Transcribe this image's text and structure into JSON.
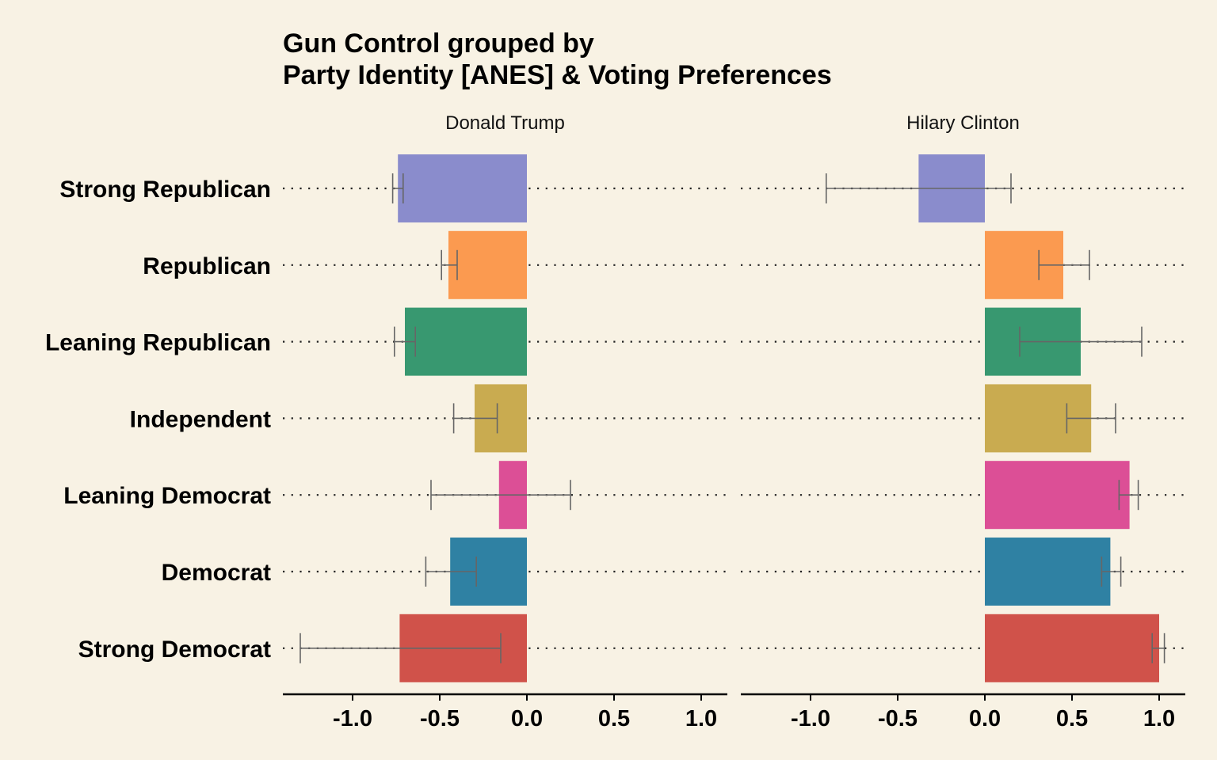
{
  "chart_data": {
    "type": "bar",
    "orientation": "horizontal",
    "title": [
      "Gun Control grouped by",
      "Party Identity [ANES] & Voting Preferences"
    ],
    "categories": [
      "Strong Republican",
      "Republican",
      "Leaning Republican",
      "Independent",
      "Leaning Democrat",
      "Democrat",
      "Strong Democrat"
    ],
    "colors": [
      "#8a8ccc",
      "#fb9a50",
      "#389870",
      "#c9ab50",
      "#dc4f96",
      "#2f81a3",
      "#d0524a"
    ],
    "xlim": [
      -1.4,
      1.15
    ],
    "xticks": [
      -1.0,
      -0.5,
      0.0,
      0.5,
      1.0
    ],
    "xtick_labels": [
      "-1.0",
      "-0.5",
      "0.0",
      "0.5",
      "1.0"
    ],
    "grid": "dotted horizontal lines at each category",
    "panels": [
      {
        "name": "Donald Trump",
        "values": [
          -0.74,
          -0.45,
          -0.7,
          -0.3,
          -0.16,
          -0.44,
          -0.73
        ],
        "errors": [
          [
            -0.77,
            -0.71
          ],
          [
            -0.49,
            -0.4
          ],
          [
            -0.76,
            -0.64
          ],
          [
            -0.42,
            -0.17
          ],
          [
            -0.55,
            0.25
          ],
          [
            -0.58,
            -0.29
          ],
          [
            -1.3,
            -0.15
          ]
        ]
      },
      {
        "name": "Hilary Clinton",
        "values": [
          -0.38,
          0.45,
          0.55,
          0.61,
          0.83,
          0.72,
          1.0
        ],
        "errors": [
          [
            -0.91,
            0.15
          ],
          [
            0.31,
            0.6
          ],
          [
            0.2,
            0.9
          ],
          [
            0.47,
            0.75
          ],
          [
            0.77,
            0.88
          ],
          [
            0.67,
            0.78
          ],
          [
            0.96,
            1.03
          ]
        ]
      }
    ]
  }
}
